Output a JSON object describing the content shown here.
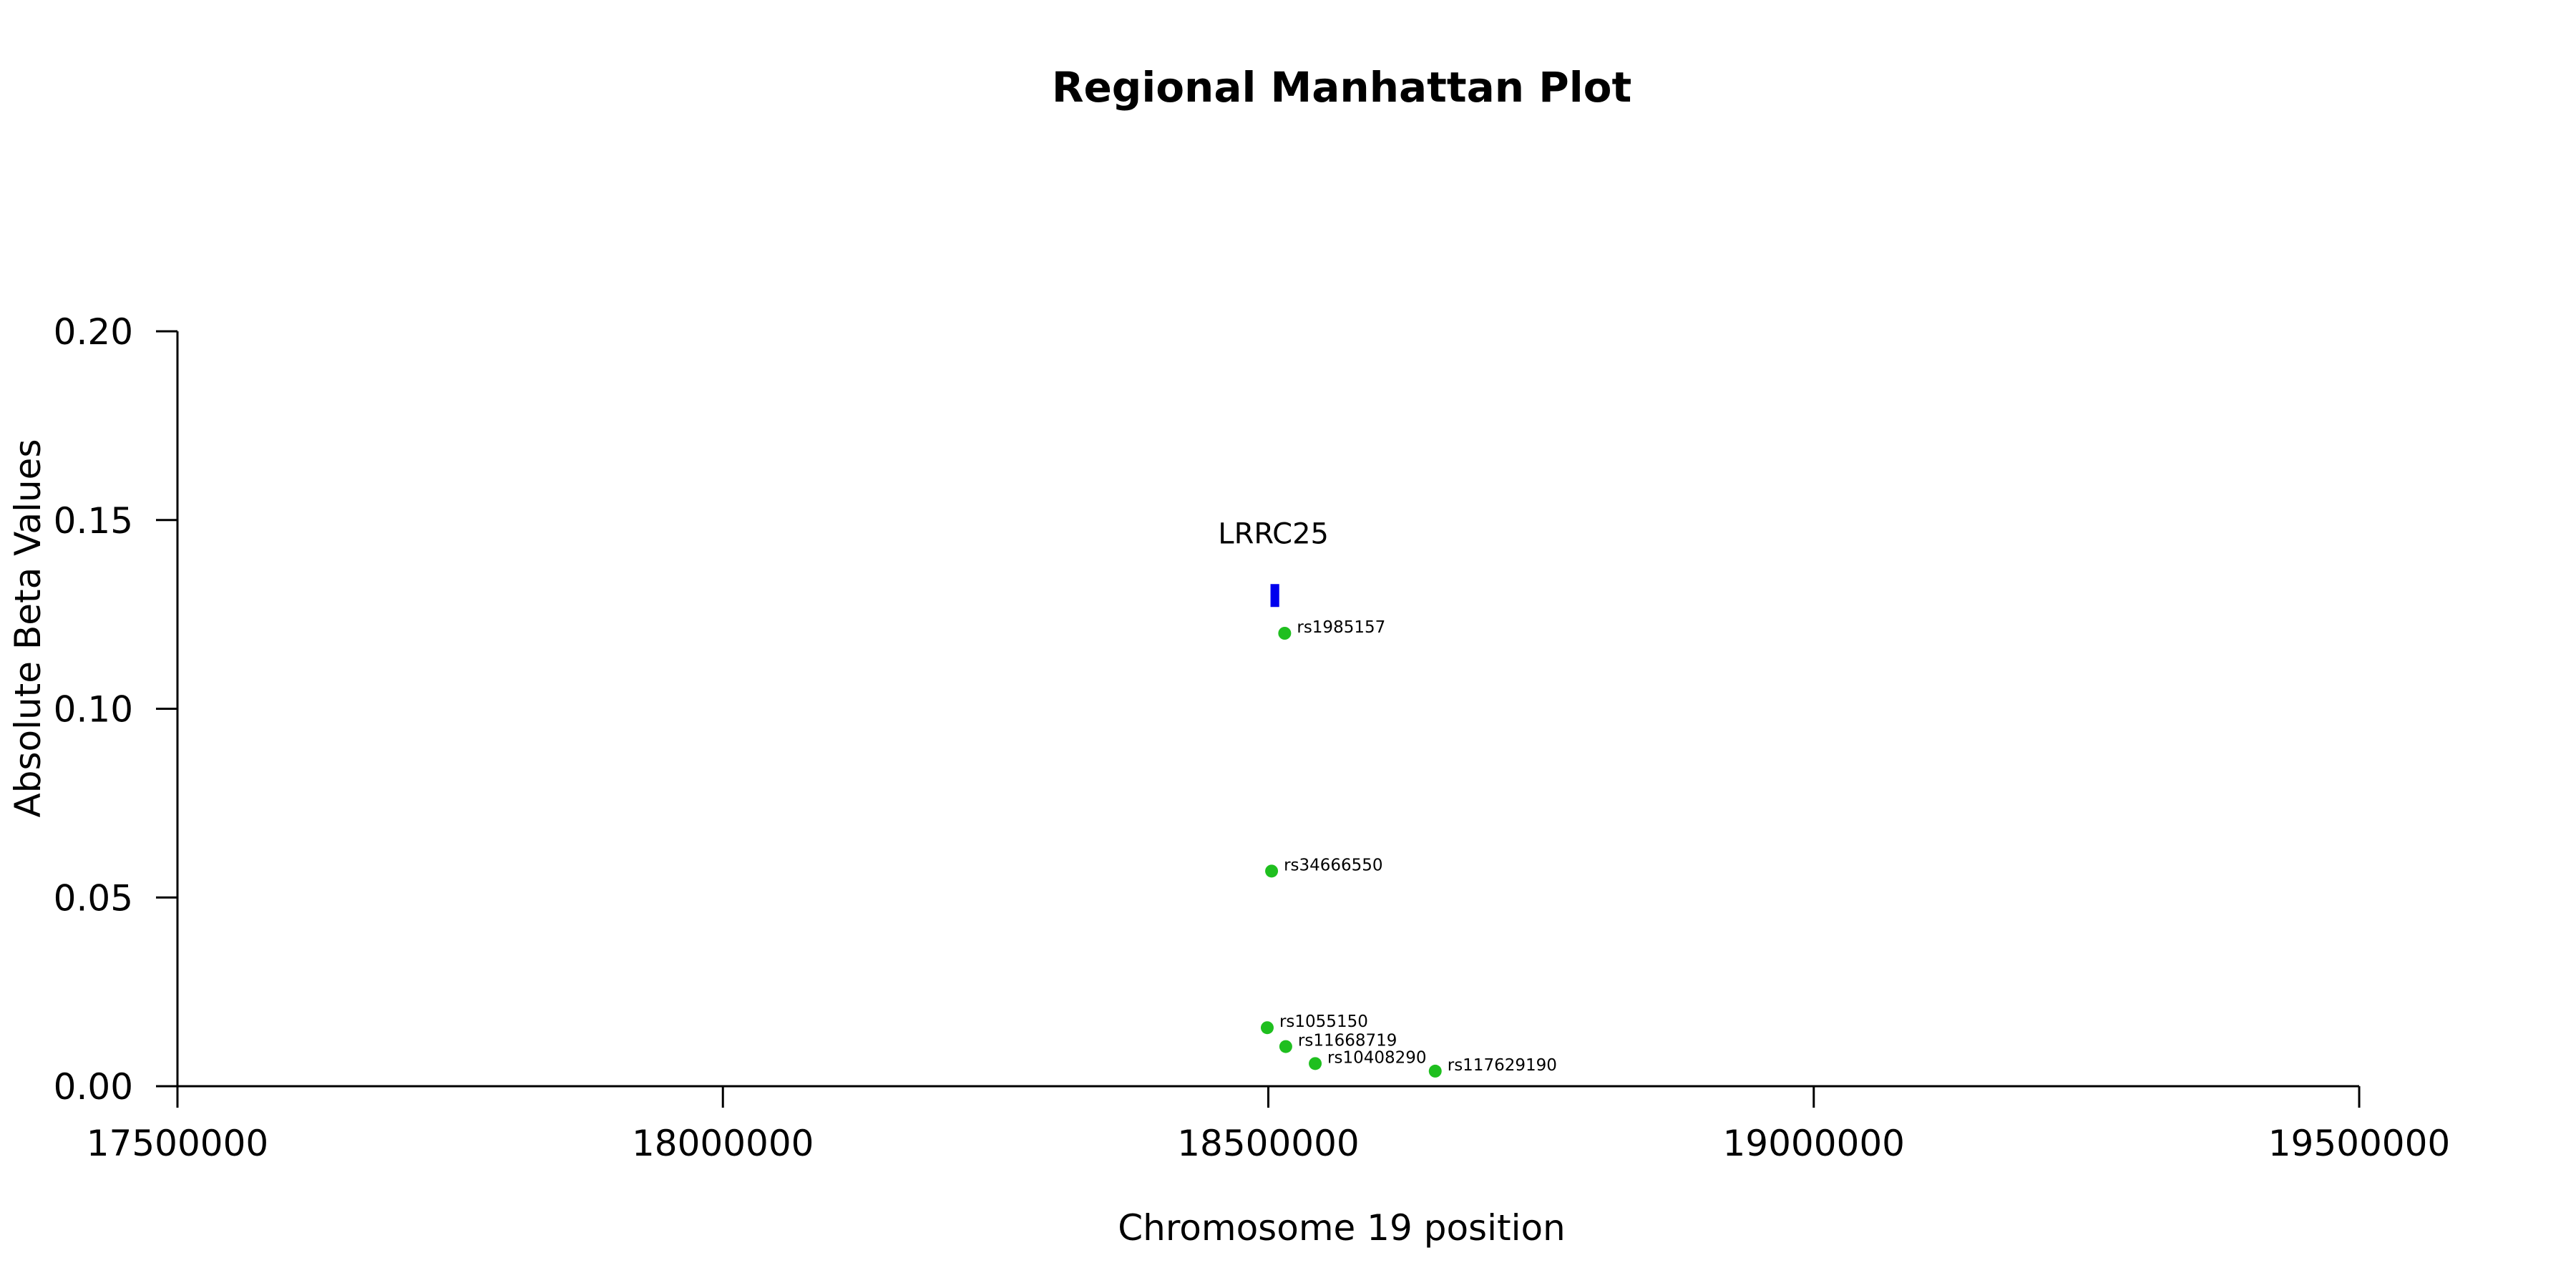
{
  "chart_data": {
    "type": "scatter",
    "title": "Regional Manhattan Plot",
    "xlabel": "Chromosome 19 position",
    "ylabel": "Absolute Beta Values",
    "xlim": [
      17500000,
      19500000
    ],
    "ylim": [
      0,
      0.2
    ],
    "x_ticks": [
      17500000,
      18000000,
      18500000,
      19000000,
      19500000
    ],
    "x_tick_labels": [
      "17500000",
      "18000000",
      "18500000",
      "19000000",
      "19500000"
    ],
    "y_ticks": [
      0,
      0.05,
      0.1,
      0.15,
      0.2
    ],
    "y_tick_labels": [
      "0.00",
      "0.05",
      "0.10",
      "0.15",
      "0.20"
    ],
    "grid": false,
    "point_color": "#1fbf1f",
    "gene_color": "#0000ee",
    "points": [
      {
        "label": "rs1985157",
        "x": 18515000,
        "y": 0.12
      },
      {
        "label": "rs34666550",
        "x": 18503000,
        "y": 0.057
      },
      {
        "label": "rs1055150",
        "x": 18499000,
        "y": 0.0155
      },
      {
        "label": "rs11668719",
        "x": 18516000,
        "y": 0.0105
      },
      {
        "label": "rs10408290",
        "x": 18543000,
        "y": 0.006
      },
      {
        "label": "rs117629190",
        "x": 18653000,
        "y": 0.004
      }
    ],
    "genes": [
      {
        "name": "LRRC25",
        "start": 18502000,
        "end": 18510000,
        "y": 0.13
      }
    ]
  }
}
